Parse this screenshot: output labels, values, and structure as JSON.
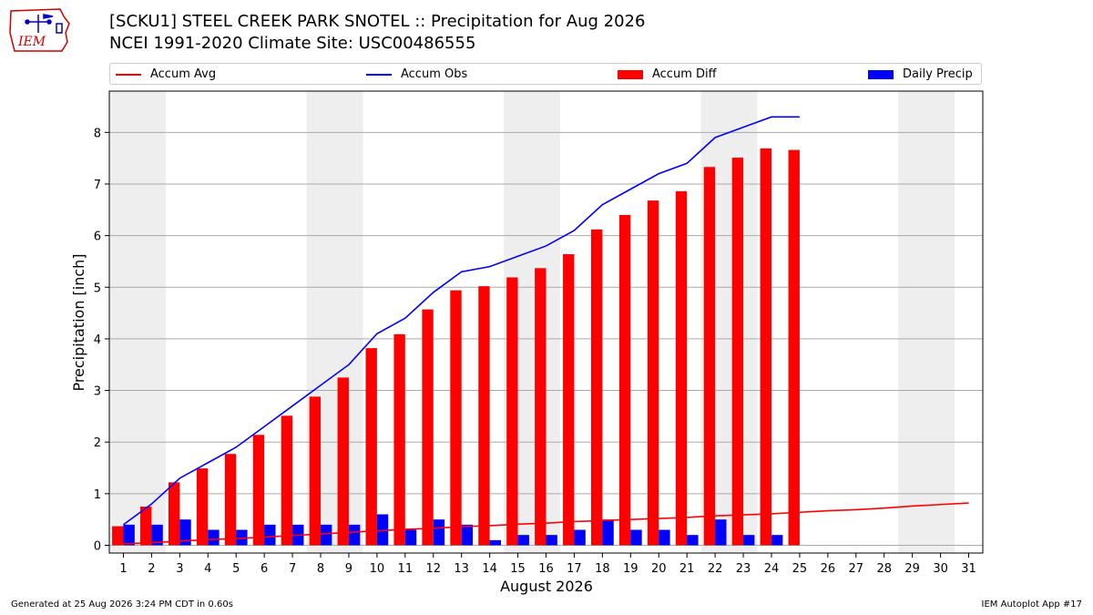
{
  "header": {
    "title_line1": "[SCKU1] STEEL CREEK PARK SNOTEL :: Precipitation for Aug 2026",
    "title_line2": "NCEI 1991-2020 Climate Site: USC00486555",
    "logo_text": "IEM"
  },
  "legend": {
    "accum_avg": "Accum Avg",
    "accum_obs": "Accum Obs",
    "accum_diff": "Accum Diff",
    "daily_precip": "Daily Precip"
  },
  "colors": {
    "accum_avg": "#ff0000",
    "accum_obs": "#0000ff",
    "accum_diff": "#ff0000",
    "daily_precip": "#0000ff",
    "weekend_shade": "#eeeeee",
    "grid": "#aaaaaa"
  },
  "chart_data": {
    "type": "bar",
    "xlabel": "August 2026",
    "ylabel": "Precipitation [inch]",
    "ylim": [
      -0.15,
      8.8
    ],
    "xlim": [
      0.5,
      31.5
    ],
    "grid": "horizontal",
    "legend_placement": "top",
    "x": [
      1,
      2,
      3,
      4,
      5,
      6,
      7,
      8,
      9,
      10,
      11,
      12,
      13,
      14,
      15,
      16,
      17,
      18,
      19,
      20,
      21,
      22,
      23,
      24,
      25,
      26,
      27,
      28,
      29,
      30,
      31
    ],
    "yticks": [
      0,
      1,
      2,
      3,
      4,
      5,
      6,
      7,
      8
    ],
    "weekend_shading": [
      [
        0.5,
        2.5
      ],
      [
        7.5,
        9.5
      ],
      [
        14.5,
        16.5
      ],
      [
        21.5,
        23.5
      ],
      [
        28.5,
        30.5
      ]
    ],
    "series": [
      {
        "name": "Accum Avg",
        "kind": "line",
        "x": [
          1,
          2,
          3,
          4,
          5,
          6,
          7,
          8,
          9,
          10,
          11,
          12,
          13,
          14,
          15,
          16,
          17,
          18,
          19,
          20,
          21,
          22,
          23,
          24,
          25,
          26,
          27,
          28,
          29,
          30,
          31
        ],
        "values": [
          0.03,
          0.05,
          0.08,
          0.11,
          0.13,
          0.16,
          0.19,
          0.22,
          0.25,
          0.28,
          0.31,
          0.33,
          0.36,
          0.38,
          0.41,
          0.43,
          0.46,
          0.48,
          0.5,
          0.52,
          0.54,
          0.57,
          0.59,
          0.61,
          0.64,
          0.67,
          0.69,
          0.72,
          0.76,
          0.79,
          0.82
        ]
      },
      {
        "name": "Accum Obs",
        "kind": "line",
        "x": [
          1,
          2,
          3,
          4,
          5,
          6,
          7,
          8,
          9,
          10,
          11,
          12,
          13,
          14,
          15,
          16,
          17,
          18,
          19,
          20,
          21,
          22,
          23,
          24,
          25
        ],
        "values": [
          0.4,
          0.8,
          1.3,
          1.6,
          1.9,
          2.3,
          2.7,
          3.1,
          3.5,
          4.1,
          4.4,
          4.9,
          5.3,
          5.4,
          5.6,
          5.8,
          6.1,
          6.6,
          6.9,
          7.2,
          7.4,
          7.9,
          8.1,
          8.3,
          8.3
        ]
      },
      {
        "name": "Accum Diff",
        "kind": "bar",
        "x": [
          1,
          2,
          3,
          4,
          5,
          6,
          7,
          8,
          9,
          10,
          11,
          12,
          13,
          14,
          15,
          16,
          17,
          18,
          19,
          20,
          21,
          22,
          23,
          24,
          25
        ],
        "values": [
          0.37,
          0.75,
          1.22,
          1.49,
          1.77,
          2.14,
          2.51,
          2.88,
          3.25,
          3.82,
          4.09,
          4.57,
          4.94,
          5.02,
          5.19,
          5.37,
          5.64,
          6.12,
          6.4,
          6.68,
          6.86,
          7.33,
          7.51,
          7.69,
          7.66
        ]
      },
      {
        "name": "Daily Precip",
        "kind": "bar",
        "x": [
          1,
          2,
          3,
          4,
          5,
          6,
          7,
          8,
          9,
          10,
          11,
          12,
          13,
          14,
          15,
          16,
          17,
          18,
          19,
          20,
          21,
          22,
          23,
          24,
          25
        ],
        "values": [
          0.4,
          0.4,
          0.5,
          0.3,
          0.3,
          0.4,
          0.4,
          0.4,
          0.4,
          0.6,
          0.3,
          0.5,
          0.4,
          0.1,
          0.2,
          0.2,
          0.3,
          0.5,
          0.3,
          0.3,
          0.2,
          0.5,
          0.2,
          0.2,
          0.0
        ]
      }
    ]
  },
  "footer": {
    "generated": "Generated at 25 Aug 2026 3:24 PM CDT in 0.60s",
    "app": "IEM Autoplot App #17"
  }
}
